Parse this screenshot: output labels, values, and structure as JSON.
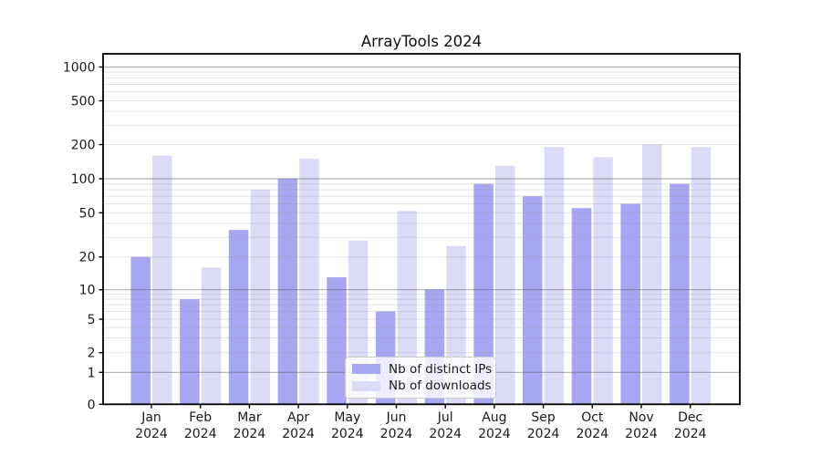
{
  "chart_data": {
    "type": "bar",
    "title": "ArrayTools 2024",
    "categories": [
      "Jan 2024",
      "Feb 2024",
      "Mar 2024",
      "Apr 2024",
      "May 2024",
      "Jun 2024",
      "Jul 2024",
      "Aug 2024",
      "Sep 2024",
      "Oct 2024",
      "Nov 2024",
      "Dec 2024"
    ],
    "series": [
      {
        "name": "Nb of distinct IPs",
        "color": "#a6a6f3",
        "values": [
          20,
          8,
          35,
          100,
          13,
          6,
          10,
          90,
          70,
          55,
          60,
          90
        ]
      },
      {
        "name": "Nb of downloads",
        "color": "#dbdbf8",
        "values": [
          160,
          16,
          80,
          150,
          28,
          52,
          25,
          130,
          190,
          155,
          200,
          190
        ]
      }
    ],
    "ylabel": "",
    "xlabel": "",
    "yticks": [
      0,
      1,
      2,
      5,
      10,
      20,
      50,
      100,
      200,
      500,
      1000
    ],
    "yscale": "log-like (1-2-5 ticks, linear below 1)",
    "ylim": [
      0,
      1000
    ],
    "grid": "horizontal major and minor gridlines drawn over bars",
    "legend_position": "lower center"
  }
}
